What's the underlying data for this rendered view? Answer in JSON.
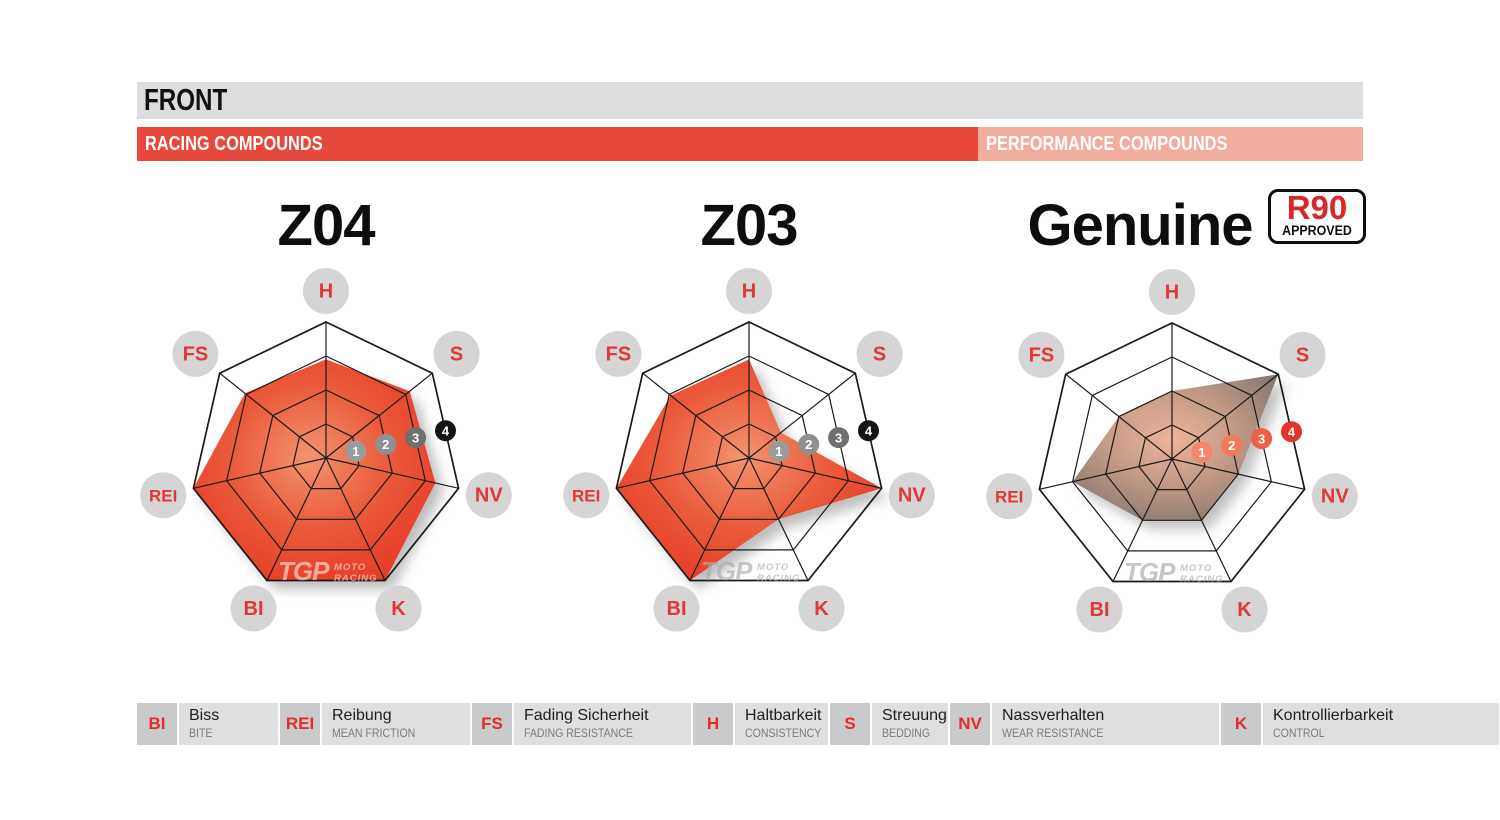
{
  "header": {
    "title": "FRONT",
    "racing_label": "RACING COMPOUNDS",
    "performance_label": "PERFORMANCE COMPOUNDS"
  },
  "badge": {
    "title": "R90",
    "subtitle": "APPROVED"
  },
  "axes_order": [
    "H",
    "S",
    "NV",
    "K",
    "BI",
    "REI",
    "FS"
  ],
  "scale_markers": [
    "1",
    "2",
    "3",
    "4"
  ],
  "watermark": {
    "logo": "TGP",
    "line1": "MOTO",
    "line2": "RACING"
  },
  "chart_data": [
    {
      "type": "radar",
      "title": "Z04",
      "group": "racing",
      "axes": [
        "H",
        "S",
        "NV",
        "K",
        "BI",
        "REI",
        "FS"
      ],
      "values": [
        2.9,
        3.15,
        3.3,
        4,
        4,
        4,
        3.05
      ],
      "scale_min": 0,
      "scale_max": 4,
      "rings": 4
    },
    {
      "type": "radar",
      "title": "Z03",
      "group": "racing",
      "axes": [
        "H",
        "S",
        "NV",
        "K",
        "BI",
        "REI",
        "FS"
      ],
      "values": [
        2.9,
        1.2,
        4,
        2,
        4,
        4,
        2.95
      ],
      "scale_min": 0,
      "scale_max": 4,
      "rings": 4
    },
    {
      "type": "radar",
      "title": "Genuine",
      "group": "performance",
      "axes": [
        "H",
        "S",
        "NV",
        "K",
        "BI",
        "REI",
        "FS"
      ],
      "values": [
        2,
        4,
        2,
        2,
        2,
        3,
        2
      ],
      "scale_min": 0,
      "scale_max": 4,
      "rings": 4
    }
  ],
  "legend": [
    {
      "abbr": "BI",
      "de": "Biss",
      "en": "BITE"
    },
    {
      "abbr": "REI",
      "de": "Reibung",
      "en": "MEAN FRICTION"
    },
    {
      "abbr": "FS",
      "de": "Fading Sicherheit",
      "en": "FADING RESISTANCE"
    },
    {
      "abbr": "H",
      "de": "Haltbarkeit",
      "en": "CONSISTENCY"
    },
    {
      "abbr": "S",
      "de": "Streuung",
      "en": "BEDDING"
    },
    {
      "abbr": "NV",
      "de": "Nassverhalten",
      "en": "WEAR RESISTANCE"
    },
    {
      "abbr": "K",
      "de": "Kontrollierbarkeit",
      "en": "CONTROL"
    }
  ],
  "colors": {
    "header_bar_bg": "#dcddde",
    "racing_bar_bg": "#e8473c",
    "performance_bar_bg": "#f3ad9d",
    "badge_red": "#d7282c",
    "grid_line": "#1a1a1a",
    "axis_label_circle": "#d5d5d6",
    "axis_label_text": "#e3363a",
    "racing_fill_center": "#f3946f",
    "racing_fill_mid": "#ea5a3b",
    "racing_fill_edge": "#e5301f",
    "genuine_fill_center": "#f3b397",
    "genuine_fill_mid": "#c09681",
    "genuine_fill_edge": "#6f6a66",
    "racing_marker_fills": [
      "#9b9b9b",
      "#909090",
      "#6f6f6f",
      "#141414"
    ],
    "performance_marker_fills": [
      "#f4876b",
      "#f37a59",
      "#ef5f44",
      "#e7322b"
    ],
    "marker_text": "#ffffff",
    "legend_abbr_bg": "#c9cacb",
    "legend_box_bg": "#dedfe0",
    "legend_abbr_text": "#e32d2d",
    "legend_en_text": "#7c7c7c"
  }
}
